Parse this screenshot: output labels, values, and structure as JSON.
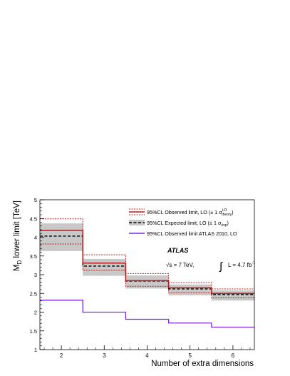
{
  "chart_data": {
    "type": "line",
    "xlabel": "Number of extra dimensions",
    "ylabel_main": "M",
    "ylabel_sub": "D",
    "ylabel_rest": " lower limit [TeV]",
    "xlim": [
      1.5,
      6.5
    ],
    "ylim": [
      1,
      5
    ],
    "xticks": [
      2,
      3,
      4,
      5,
      6
    ],
    "yticks": [
      1,
      1.5,
      2,
      2.5,
      3,
      3.5,
      4,
      4.5,
      5
    ],
    "x": [
      2,
      3,
      4,
      5,
      6
    ],
    "series": [
      {
        "name": "95%CL Observed limit, LO (± 1 σ",
        "name_sup": "LO",
        "name_sub": "theory",
        "name_end": ")",
        "color": "#b41e1e",
        "values": [
          4.18,
          3.31,
          2.84,
          2.65,
          2.5
        ],
        "band_low": [
          3.82,
          3.12,
          2.69,
          2.52,
          2.38
        ],
        "band_high": [
          4.49,
          3.53,
          3.03,
          2.79,
          2.62
        ]
      },
      {
        "name": "95%CL Expected limit, LO (± 1 σ",
        "name_sub": "exp",
        "name_end": ")",
        "color": "#000000",
        "band_color": "#c8c8c8",
        "values": [
          4.03,
          3.23,
          2.83,
          2.62,
          2.47
        ],
        "band_low": [
          3.63,
          2.97,
          2.63,
          2.45,
          2.31
        ],
        "band_high": [
          4.37,
          3.42,
          2.98,
          2.74,
          2.58
        ]
      },
      {
        "name": "95%CL Observed limit ATLAS 2010, LO",
        "color": "#7a2ae0",
        "values": [
          2.32,
          2.0,
          1.81,
          1.71,
          1.6
        ]
      }
    ],
    "annotations": {
      "experiment": "ATLAS",
      "energy": "√s = 7 TeV,",
      "integral": "∫",
      "lumi": "L = 4.7 fb",
      "lumi_sup": "-1"
    },
    "legend_position": "top-right",
    "grid": false
  }
}
